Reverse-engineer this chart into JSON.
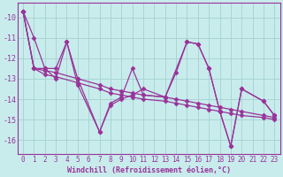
{
  "xlabel": "Windchill (Refroidissement éolien,°C)",
  "bg_color": "#c8ecec",
  "grid_color": "#aad4d4",
  "line_color": "#993399",
  "spine_color": "#993399",
  "xlim": [
    -0.5,
    23.5
  ],
  "ylim": [
    -16.7,
    -9.3
  ],
  "yticks": [
    -16,
    -15,
    -14,
    -13,
    -12,
    -11,
    -10
  ],
  "xticks": [
    0,
    1,
    2,
    3,
    4,
    5,
    6,
    7,
    8,
    9,
    10,
    11,
    12,
    13,
    14,
    15,
    16,
    17,
    18,
    19,
    20,
    21,
    22,
    23
  ],
  "series": [
    {
      "x": [
        0,
        1,
        2,
        3,
        4,
        5,
        7,
        8,
        9,
        10,
        11,
        13,
        14,
        15,
        16,
        17,
        18,
        19,
        20,
        22,
        23
      ],
      "y": [
        -9.7,
        -11.0,
        -12.5,
        -12.5,
        -11.2,
        -13.0,
        -15.6,
        -14.3,
        -14.0,
        -13.8,
        -13.5,
        -13.9,
        -12.7,
        -11.2,
        -11.3,
        -12.5,
        -14.6,
        -16.3,
        -13.5,
        -14.1,
        -14.8
      ]
    },
    {
      "x": [
        0,
        1,
        2,
        3,
        5,
        7,
        8,
        9,
        10,
        11,
        13,
        14,
        15,
        16,
        17,
        18,
        19,
        20,
        22,
        23
      ],
      "y": [
        -9.7,
        -12.5,
        -12.8,
        -12.9,
        -13.2,
        -13.5,
        -13.7,
        -13.8,
        -13.9,
        -14.0,
        -14.1,
        -14.2,
        -14.3,
        -14.4,
        -14.5,
        -14.6,
        -14.7,
        -14.8,
        -14.9,
        -15.0
      ]
    },
    {
      "x": [
        0,
        1,
        2,
        3,
        5,
        7,
        8,
        9,
        10,
        11,
        13,
        14,
        15,
        16,
        17,
        18,
        19,
        20,
        22,
        23
      ],
      "y": [
        -9.7,
        -12.5,
        -12.6,
        -12.7,
        -13.0,
        -13.3,
        -13.5,
        -13.6,
        -13.7,
        -13.8,
        -13.9,
        -14.0,
        -14.1,
        -14.2,
        -14.3,
        -14.4,
        -14.5,
        -14.6,
        -14.8,
        -14.9
      ]
    },
    {
      "x": [
        0,
        1,
        2,
        3,
        4,
        5,
        7,
        8,
        9,
        10,
        11,
        13,
        15,
        16,
        17,
        18,
        19,
        20,
        22,
        23
      ],
      "y": [
        -9.7,
        -12.5,
        -12.5,
        -13.0,
        -11.2,
        -13.3,
        -15.6,
        -14.2,
        -13.9,
        -12.5,
        -13.8,
        -13.9,
        -11.2,
        -11.3,
        -12.5,
        -14.6,
        -16.3,
        -13.5,
        -14.1,
        -14.8
      ]
    }
  ],
  "marker": "D",
  "markersize": 2.5,
  "linewidth": 0.9,
  "tick_fontsize": 5.5,
  "xlabel_fontsize": 6.0
}
